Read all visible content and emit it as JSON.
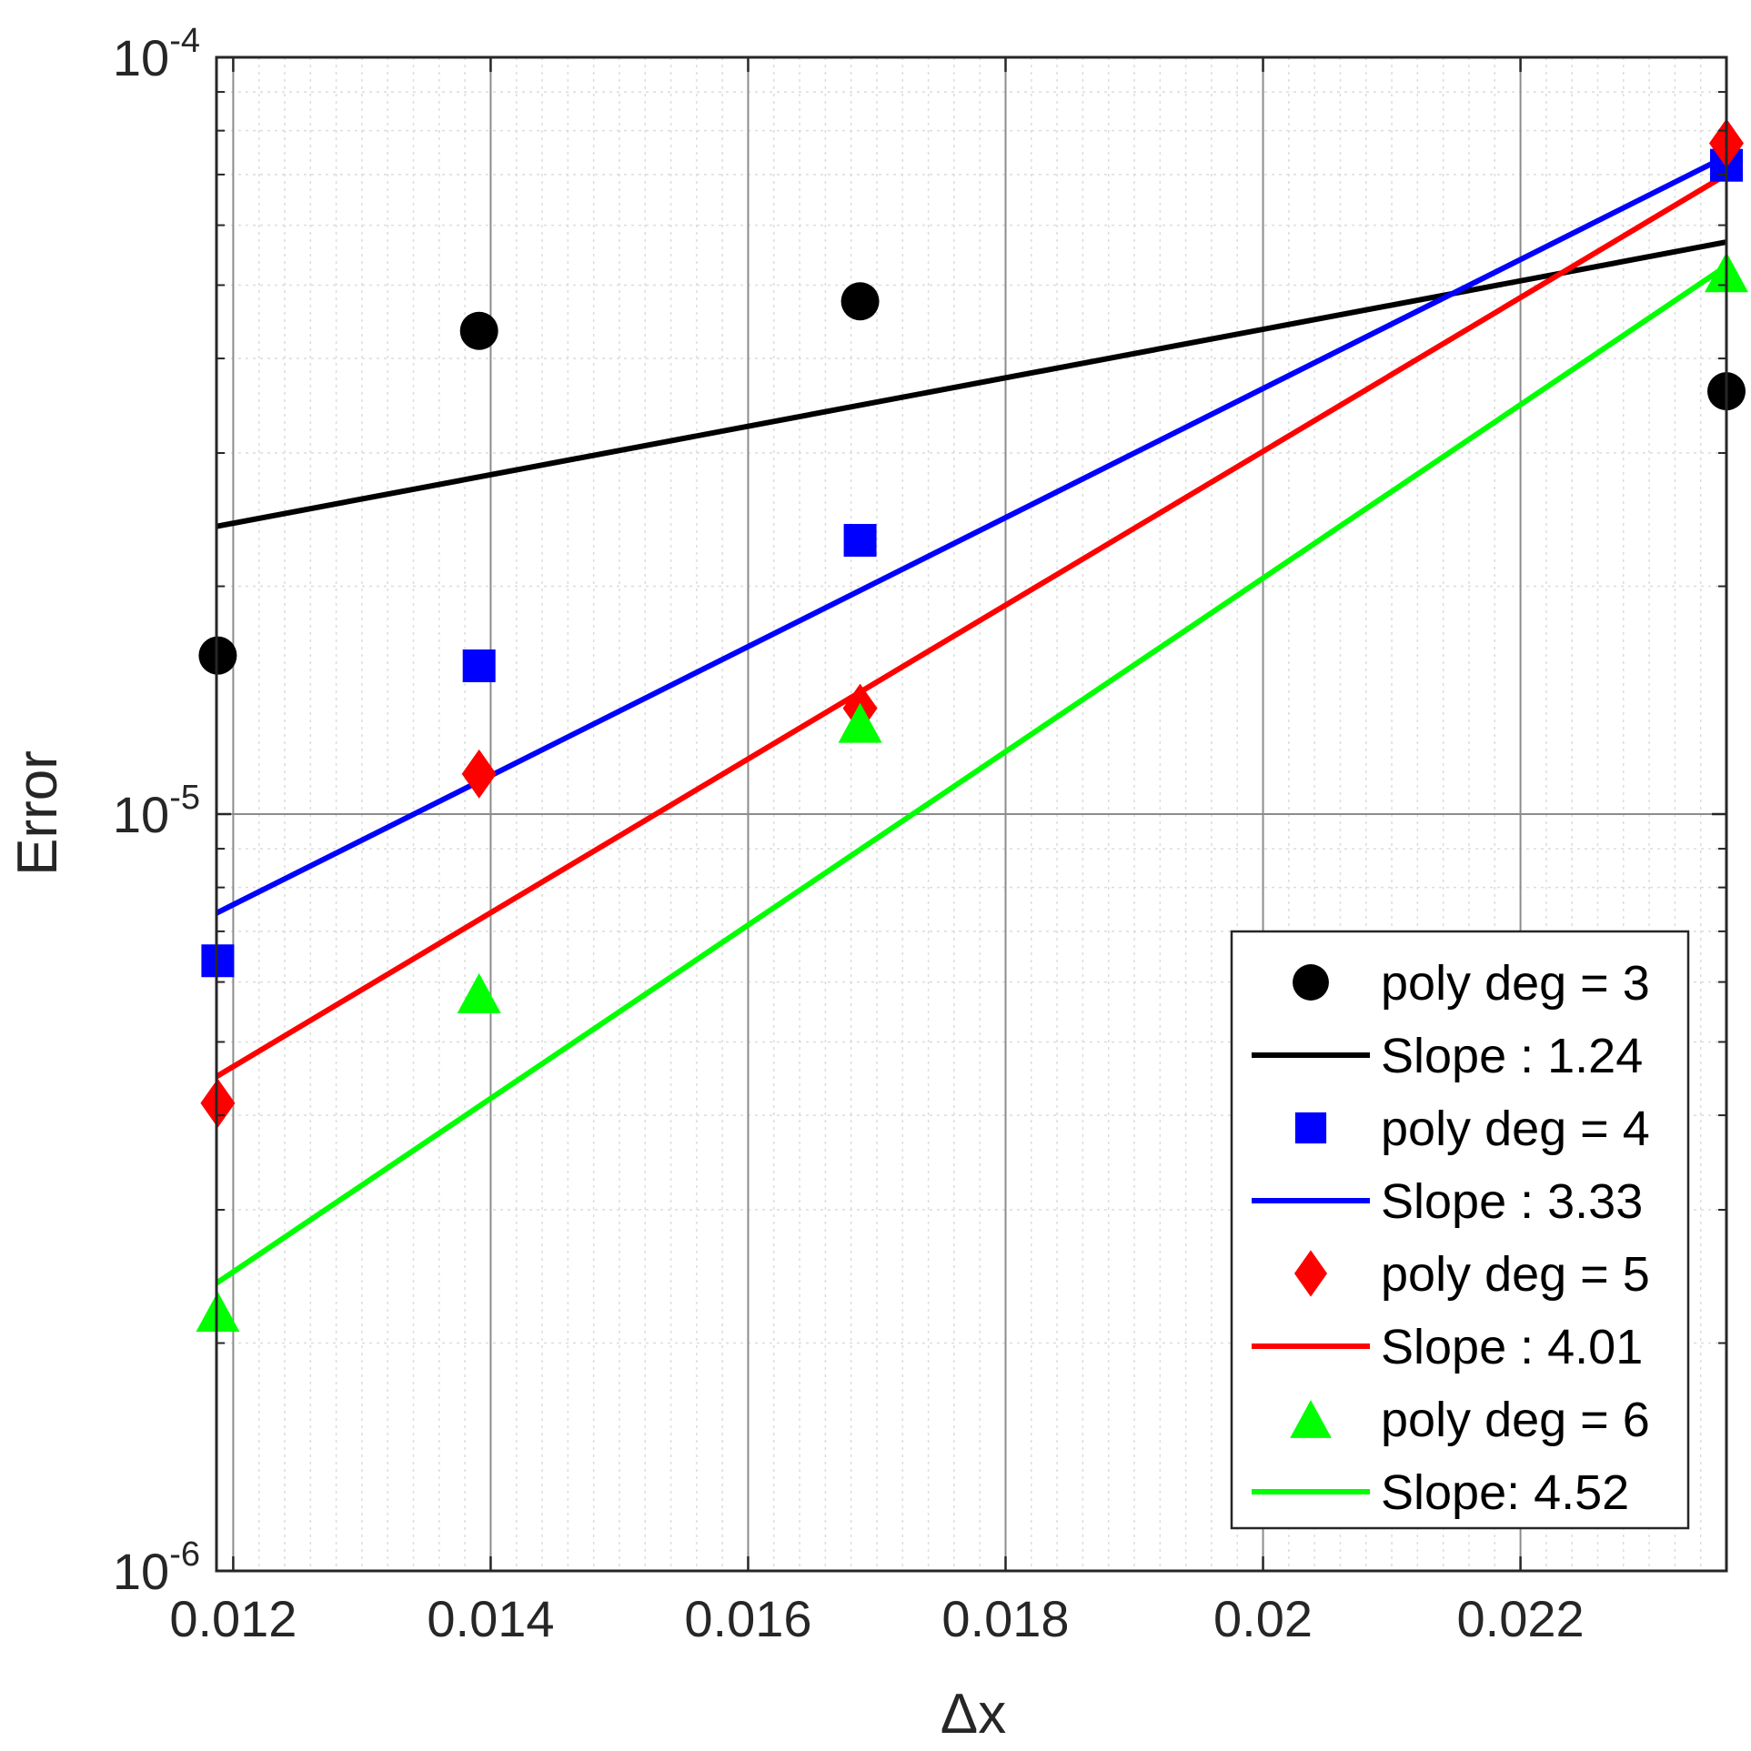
{
  "chart_data": {
    "type": "scatter",
    "title": "",
    "xlabel": "Δx",
    "ylabel": "Error",
    "xscale": "linear",
    "yscale": "log",
    "xlim": [
      0.01187,
      0.0236
    ],
    "ylim": [
      1e-06,
      0.0001
    ],
    "grid": true,
    "minor_grid": true,
    "legend_position": "bottom-right",
    "x_ticks": [
      0.012,
      0.014,
      0.016,
      0.018,
      0.02,
      0.022
    ],
    "x_tick_labels": [
      "0.012",
      "0.014",
      "0.016",
      "0.018",
      "0.02",
      "0.022"
    ],
    "y_ticks": [
      {
        "value": 0.0001,
        "base": "10",
        "exp": "-4"
      },
      {
        "value": 1e-05,
        "base": "10",
        "exp": "-5"
      },
      {
        "value": 1e-06,
        "base": "10",
        "exp": "-6"
      }
    ],
    "series": [
      {
        "name": "poly deg = 3",
        "kind": "markers",
        "marker": "circle",
        "color": "#000000",
        "x": [
          0.01188,
          0.01391,
          0.01687,
          0.0236
        ],
        "y": [
          1.62e-05,
          4.35e-05,
          4.76e-05,
          3.62e-05
        ]
      },
      {
        "name": "Slope : 1.24",
        "kind": "line",
        "color": "#000000",
        "x": [
          0.01187,
          0.0236
        ],
        "y": [
          2.4e-05,
          5.7e-05
        ]
      },
      {
        "name": "poly deg = 4",
        "kind": "markers",
        "marker": "square",
        "color": "#0000ff",
        "x": [
          0.01188,
          0.01391,
          0.01687,
          0.0236
        ],
        "y": [
          6.4e-06,
          1.57e-05,
          2.3e-05,
          7.2e-05
        ]
      },
      {
        "name": "Slope : 3.33",
        "kind": "line",
        "color": "#0000ff",
        "x": [
          0.01187,
          0.0236
        ],
        "y": [
          7.4e-06,
          7.4e-05
        ]
      },
      {
        "name": "poly deg = 5",
        "kind": "markers",
        "marker": "diamond",
        "color": "#ff0000",
        "x": [
          0.01188,
          0.01391,
          0.01687,
          0.0236
        ],
        "y": [
          4.15e-06,
          1.13e-05,
          1.38e-05,
          7.7e-05
        ]
      },
      {
        "name": "Slope : 4.01",
        "kind": "line",
        "color": "#ff0000",
        "x": [
          0.01187,
          0.0236
        ],
        "y": [
          4.5e-06,
          7e-05
        ]
      },
      {
        "name": "poly deg = 6",
        "kind": "markers",
        "marker": "triangle",
        "color": "#00ff00",
        "x": [
          0.01188,
          0.01391,
          0.01687,
          0.0236
        ],
        "y": [
          2.2e-06,
          5.8e-06,
          1.32e-05,
          5.2e-05
        ]
      },
      {
        "name": "Slope: 4.52",
        "kind": "line",
        "color": "#00ff00",
        "x": [
          0.01187,
          0.0236
        ],
        "y": [
          2.4e-06,
          5.3e-05
        ]
      }
    ]
  }
}
